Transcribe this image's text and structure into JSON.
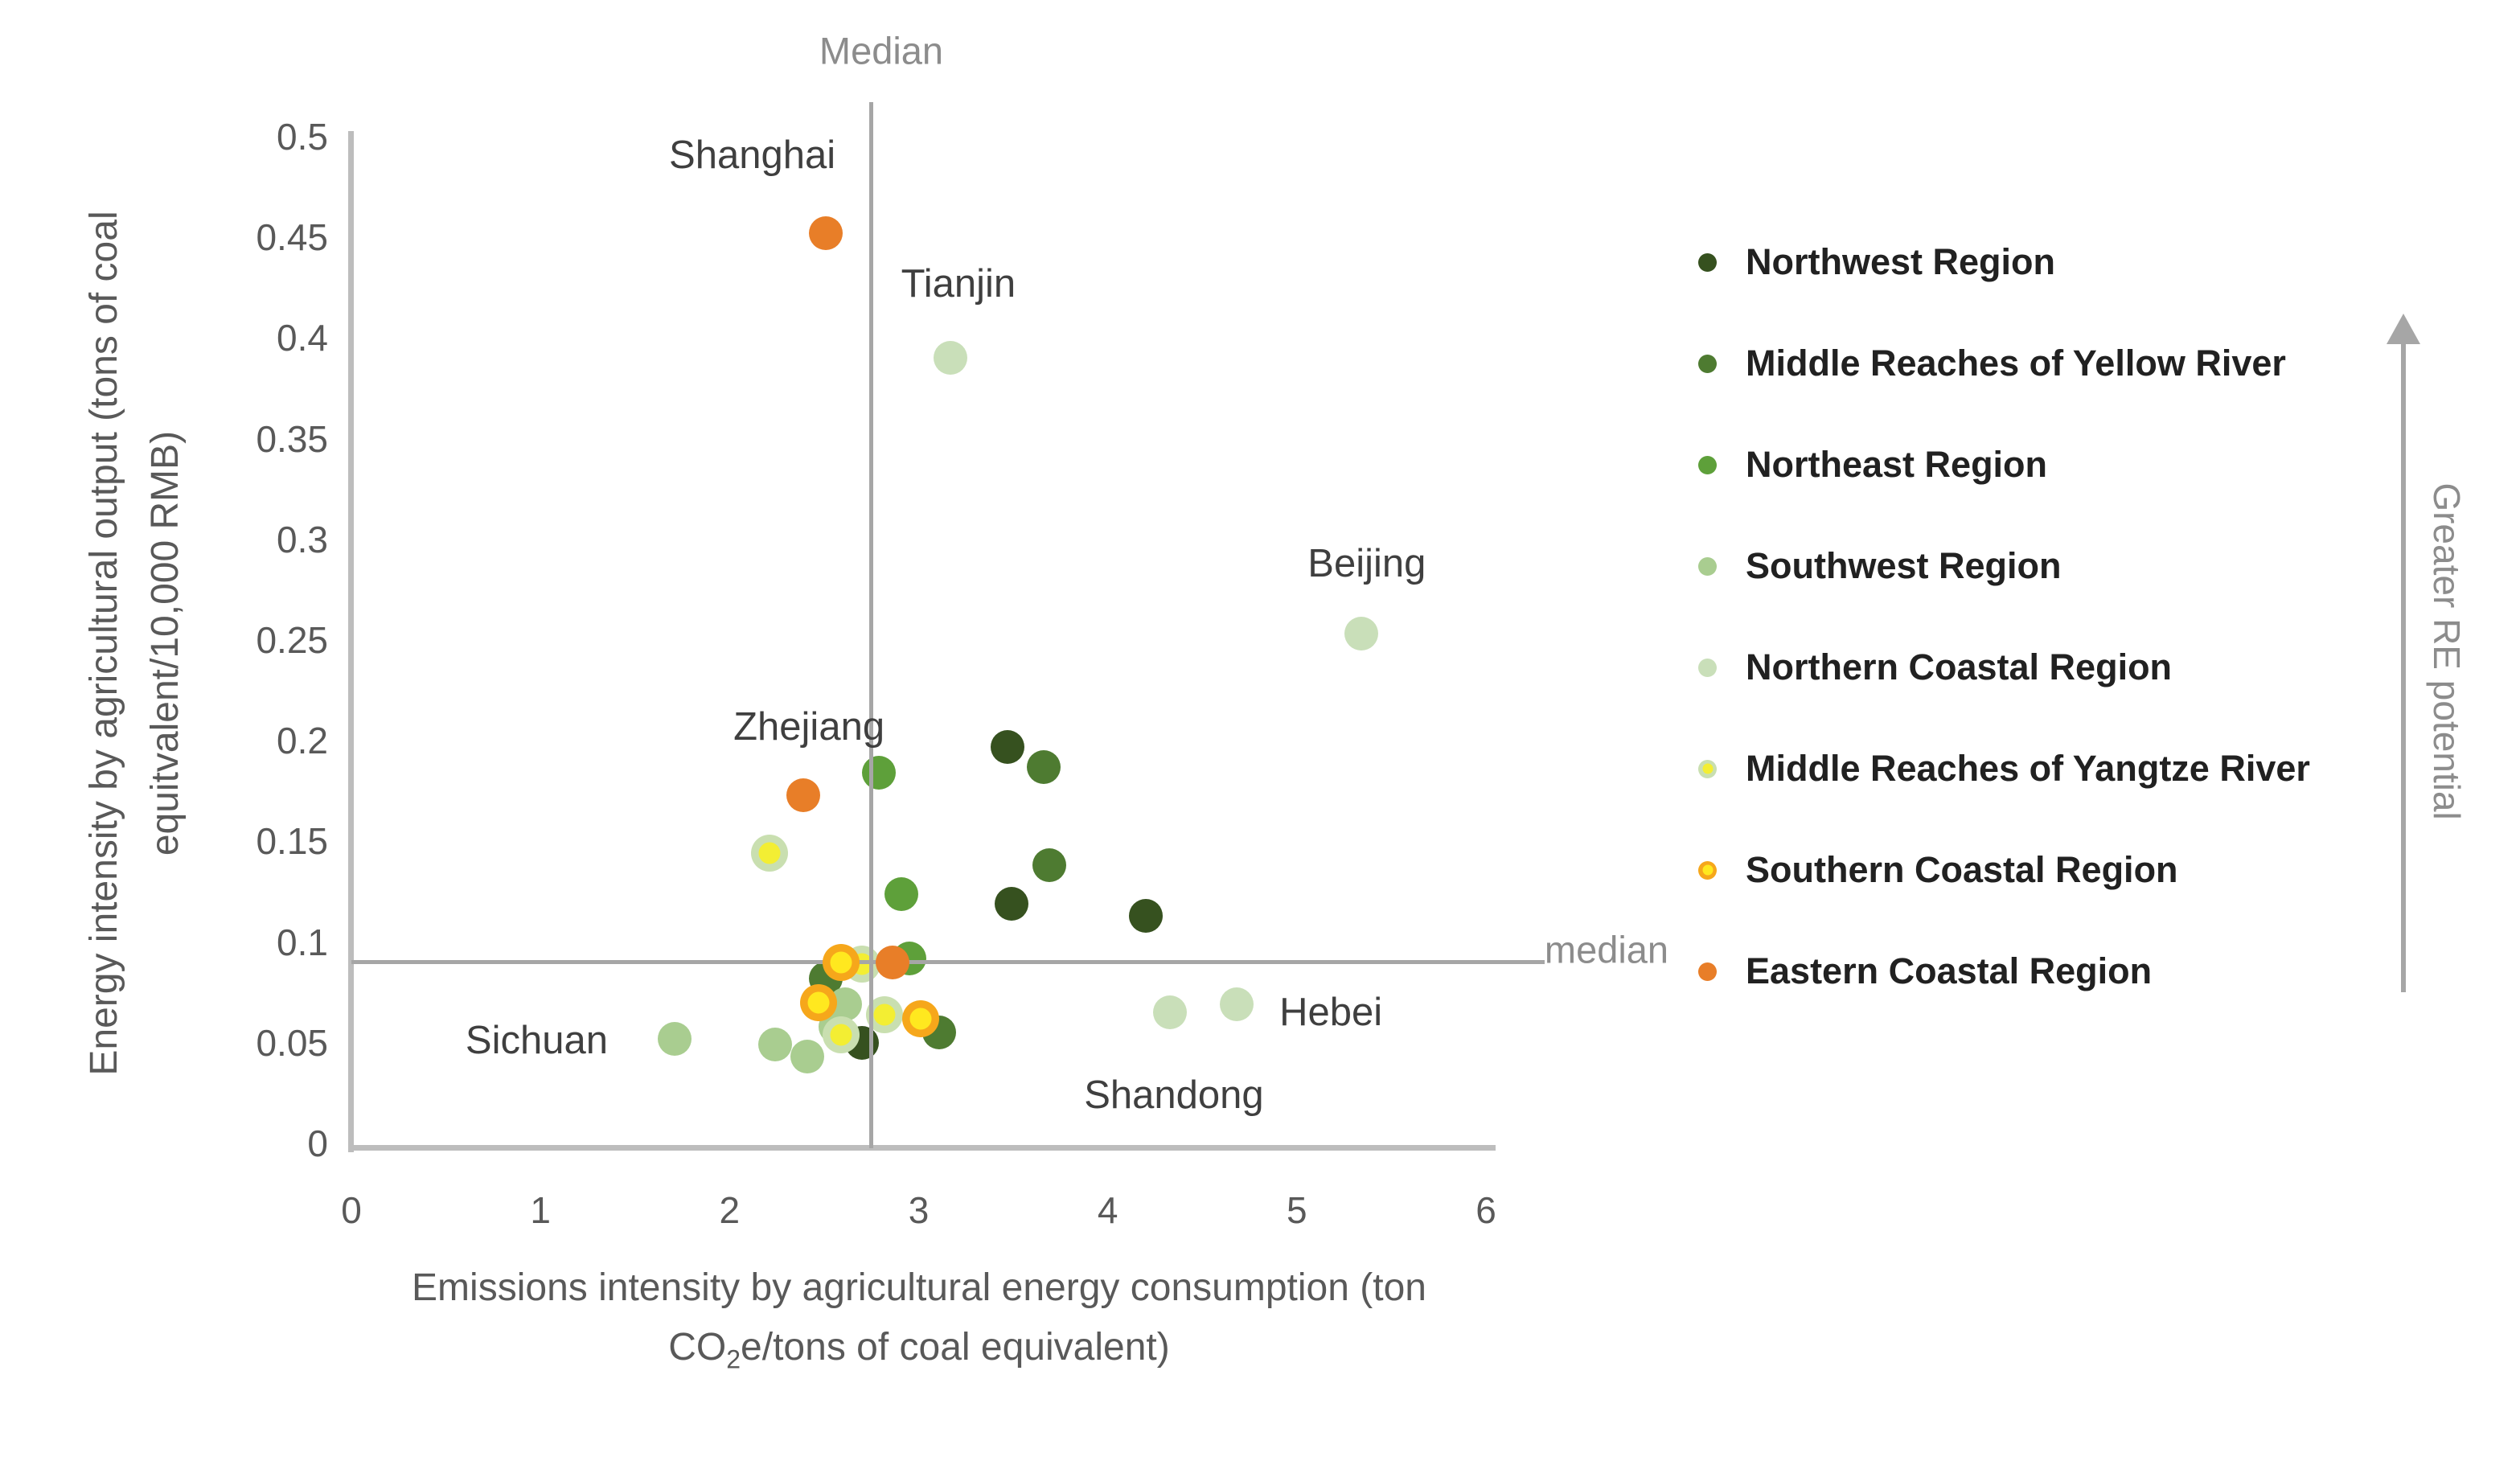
{
  "figure": {
    "median_top_label": "Median",
    "median_right_label": "median",
    "re_arrow_label": "Greater RE potential"
  },
  "chart_data": {
    "type": "scatter",
    "x_axis": {
      "title_line1": "Emissions intensity by agricultural energy consumption (ton",
      "title_co": "CO",
      "title_sub": "2",
      "title_rest": "e/tons of coal equivalent)",
      "min": 0,
      "max": 6,
      "ticks": [
        0,
        1,
        2,
        3,
        4,
        5,
        6
      ],
      "tick_labels": [
        "0",
        "1",
        "2",
        "3",
        "4",
        "5",
        "6"
      ]
    },
    "y_axis": {
      "title_line1": "Energy intensity by agricultural output (tons of coal",
      "title_line2": "equitvalent/10,000 RMB)",
      "min": 0,
      "max": 0.5,
      "ticks": [
        0.5,
        0.45,
        0.4,
        0.35,
        0.3,
        0.25,
        0.2,
        0.15,
        0.1,
        0.05,
        0
      ],
      "tick_labels": [
        "0.5",
        "0.45",
        "0.4",
        "0.35",
        "0.3",
        "0.25",
        "0.2",
        "0.15",
        "0.1",
        "0.05",
        "0"
      ]
    },
    "median": {
      "x": 2.75,
      "y": 0.09,
      "vertical_extent_y": [
        0,
        0.517
      ],
      "horizontal_extent_x": [
        0,
        6.31
      ]
    },
    "series": [
      {
        "key": "northwest",
        "name": "Northwest Region",
        "marker": {
          "style": "solid",
          "color": "#36511f"
        },
        "points": [
          [
            3.47,
            0.197
          ],
          [
            3.49,
            0.119
          ],
          [
            4.2,
            0.113
          ],
          [
            2.7,
            0.05
          ]
        ]
      },
      {
        "key": "yellow_river",
        "name": "Middle Reaches of Yellow River",
        "marker": {
          "style": "solid",
          "color": "#4e7b31"
        },
        "points": [
          [
            3.66,
            0.187
          ],
          [
            3.69,
            0.138
          ],
          [
            2.51,
            0.082
          ],
          [
            3.11,
            0.055
          ]
        ]
      },
      {
        "key": "northeast",
        "name": "Northeast Region",
        "marker": {
          "style": "solid",
          "color": "#5ea03a"
        },
        "points": [
          [
            2.79,
            0.184
          ],
          [
            2.91,
            0.124
          ],
          [
            2.95,
            0.092
          ]
        ]
      },
      {
        "key": "southwest",
        "name": "Southwest Region",
        "marker": {
          "style": "solid",
          "color": "#a9cd90"
        },
        "points": [
          [
            1.71,
            0.052
          ],
          [
            2.24,
            0.049
          ],
          [
            2.41,
            0.043
          ],
          [
            2.61,
            0.069
          ],
          [
            2.56,
            0.058
          ]
        ]
      },
      {
        "key": "northern_coastal",
        "name": "Northern Coastal Region",
        "marker": {
          "style": "solid",
          "color": "#c9dfb9"
        },
        "points": [
          [
            3.17,
            0.39
          ],
          [
            5.34,
            0.253
          ],
          [
            4.33,
            0.065
          ],
          [
            4.68,
            0.069
          ]
        ]
      },
      {
        "key": "yangtze",
        "name": "Middle Reaches of Yangtze River",
        "marker": {
          "style": "ring",
          "fill": "#f3ee33",
          "ring": "#c9dfb0"
        },
        "points": [
          [
            2.21,
            0.144
          ],
          [
            2.7,
            0.089
          ],
          [
            2.82,
            0.064
          ],
          [
            2.59,
            0.054
          ]
        ]
      },
      {
        "key": "southern_coastal",
        "name": "Southern Coastal Region",
        "marker": {
          "style": "ring",
          "fill": "#ffe81f",
          "ring": "#f6a71b"
        },
        "points": [
          [
            2.59,
            0.09
          ],
          [
            2.47,
            0.07
          ],
          [
            3.01,
            0.062
          ]
        ]
      },
      {
        "key": "eastern_coastal",
        "name": "Eastern Coastal Region",
        "marker": {
          "style": "solid",
          "color": "#e87e28"
        },
        "points": [
          [
            2.51,
            0.452
          ],
          [
            2.39,
            0.173
          ],
          [
            2.86,
            0.09
          ]
        ]
      }
    ],
    "z_order": {
      "below_median_lines": [
        "northern_coastal",
        "northeast",
        "northwest",
        "yellow_river",
        "southwest",
        "yangtze"
      ],
      "above_median_lines": [
        "southern_coastal",
        "eastern_coastal"
      ]
    },
    "annotations": [
      {
        "text": "Shanghai",
        "x": 2.12,
        "y": 0.491
      },
      {
        "text": "Tianjin",
        "x": 3.21,
        "y": 0.427
      },
      {
        "text": "Beijing",
        "x": 5.37,
        "y": 0.288
      },
      {
        "text": "Zhejiang",
        "x": 2.42,
        "y": 0.207
      },
      {
        "text": "Sichuan",
        "x": 0.98,
        "y": 0.051
      },
      {
        "text": "Hebei",
        "x": 5.18,
        "y": 0.065
      },
      {
        "text": "Shandong",
        "x": 4.35,
        "y": 0.024
      }
    ],
    "legend_position": "right",
    "grid": false
  }
}
